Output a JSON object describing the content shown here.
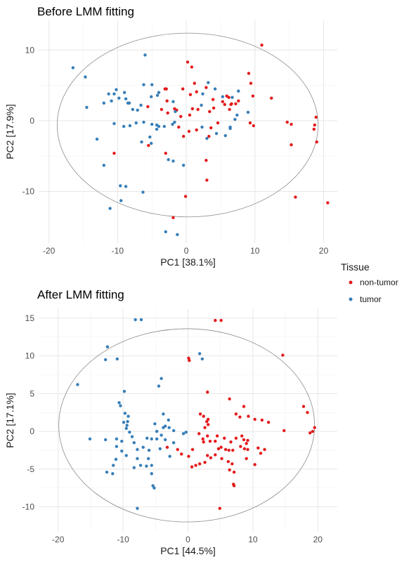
{
  "legend": {
    "title": "Tissue",
    "position": "right",
    "entries": [
      {
        "label": "non-tumor",
        "color": "#E41A1C"
      },
      {
        "label": "tumor",
        "color": "#377EB8"
      }
    ]
  },
  "chart_data": [
    {
      "type": "scatter",
      "title": "Before LMM fitting",
      "xlabel": "PC1 [38.1%]",
      "ylabel": "PC2 [17.9%]",
      "xlim": [
        -21.5,
        22
      ],
      "ylim": [
        -17.3,
        14.2
      ],
      "xticks": [
        -20,
        -10,
        0,
        10,
        20
      ],
      "yticks": [
        -10,
        0,
        10
      ],
      "grid": true,
      "ellipse": {
        "center": [
          0.2,
          -0.6
        ],
        "radius_x": 19.0,
        "radius_y": 13.0
      },
      "series": [
        {
          "name": "non-tumor",
          "color": "#E41A1C",
          "points": [
            [
              11.0,
              10.7
            ],
            [
              0.2,
              8.3
            ],
            [
              0.8,
              7.6
            ],
            [
              1.2,
              5.3
            ],
            [
              -0.5,
              4.5
            ],
            [
              0.6,
              3.7
            ],
            [
              2.9,
              4.7
            ],
            [
              1.5,
              4.1
            ],
            [
              -3.1,
              4.5
            ],
            [
              -2.9,
              4.5
            ],
            [
              -2.8,
              2.8
            ],
            [
              3.9,
              3.0
            ],
            [
              -2.7,
              1.1
            ],
            [
              -1.4,
              1.5
            ],
            [
              0.9,
              1.7
            ],
            [
              1.7,
              1.6
            ],
            [
              3.4,
              1.3
            ],
            [
              -5.6,
              2.0
            ],
            [
              -3.6,
              1.6
            ],
            [
              -1.7,
              1.7
            ],
            [
              -0.8,
              0.6
            ],
            [
              0.5,
              0.8
            ],
            [
              0.4,
              -1.5
            ],
            [
              3.6,
              -1.0
            ],
            [
              4.6,
              -0.3
            ],
            [
              -0.4,
              -2.2
            ],
            [
              1.5,
              -1.3
            ],
            [
              3.3,
              -2.2
            ],
            [
              4.0,
              1.8
            ],
            [
              5.9,
              3.5
            ],
            [
              6.2,
              3.3
            ],
            [
              6.5,
              2.3
            ],
            [
              6.3,
              1.6
            ],
            [
              6.6,
              2.4
            ],
            [
              7.2,
              2.4
            ],
            [
              7.6,
              2.8
            ],
            [
              5.3,
              2.7
            ],
            [
              5.6,
              2.3
            ],
            [
              9.1,
              6.7
            ],
            [
              9.4,
              5.3
            ],
            [
              9.7,
              3.5
            ],
            [
              9.3,
              -0.3
            ],
            [
              9.8,
              -0.7
            ],
            [
              12.4,
              3.2
            ],
            [
              14.7,
              -0.2
            ],
            [
              15.3,
              -0.5
            ],
            [
              15.3,
              -3.4
            ],
            [
              18.9,
              0.5
            ],
            [
              18.7,
              -0.6
            ],
            [
              18.6,
              -1.2
            ],
            [
              19.0,
              -3.0
            ],
            [
              15.9,
              -10.8
            ],
            [
              20.6,
              -11.6
            ],
            [
              -10.5,
              -4.6
            ],
            [
              -5.5,
              -3.5
            ],
            [
              -3.0,
              -4.6
            ],
            [
              2.9,
              -5.6
            ],
            [
              3.0,
              -8.4
            ],
            [
              -0.1,
              -10.7
            ],
            [
              -1.9,
              -13.7
            ],
            [
              -1.1,
              -0.9
            ]
          ]
        },
        {
          "name": "tumor",
          "color": "#377EB8",
          "points": [
            [
              -16.5,
              7.5
            ],
            [
              -14.7,
              6.2
            ],
            [
              -14.5,
              1.9
            ],
            [
              -11.3,
              3.8
            ],
            [
              -10.5,
              3.8
            ],
            [
              -10.2,
              4.4
            ],
            [
              -9.0,
              4.0
            ],
            [
              -8.8,
              3.1
            ],
            [
              -9.8,
              3.2
            ],
            [
              -8.3,
              2.5
            ],
            [
              -7.8,
              1.6
            ],
            [
              -7.1,
              1.5
            ],
            [
              -6.6,
              2.2
            ],
            [
              -6.2,
              5.1
            ],
            [
              -5.0,
              5.1
            ],
            [
              -5.1,
              3.4
            ],
            [
              -4.2,
              3.6
            ],
            [
              -12.0,
              2.5
            ],
            [
              -10.9,
              2.8
            ],
            [
              -8.5,
              2.5
            ],
            [
              -6.0,
              9.3
            ],
            [
              -4.0,
              4.0
            ],
            [
              -7.3,
              -0.3
            ],
            [
              -6.2,
              -0.2
            ],
            [
              -4.3,
              -0.6
            ],
            [
              -4.0,
              -0.8
            ],
            [
              -3.2,
              -0.8
            ],
            [
              -5.0,
              -0.5
            ],
            [
              -4.3,
              -1.2
            ],
            [
              -2.0,
              -0.5
            ],
            [
              -1.7,
              -0.2
            ],
            [
              -1.9,
              2.7
            ],
            [
              -1.6,
              1.3
            ],
            [
              2.4,
              3.8
            ],
            [
              2.2,
              2.2
            ],
            [
              3.2,
              5.4
            ],
            [
              6.7,
              3.3
            ],
            [
              5.3,
              3.4
            ],
            [
              4.2,
              4.5
            ],
            [
              7.6,
              4.2
            ],
            [
              7.4,
              0.8
            ],
            [
              6.4,
              -1.1
            ],
            [
              7.1,
              0.2
            ],
            [
              9.0,
              1.2
            ],
            [
              6.4,
              -0.9
            ],
            [
              2.3,
              -0.9
            ],
            [
              3.0,
              -2.5
            ],
            [
              4.4,
              -1.8
            ],
            [
              5.7,
              -2.1
            ],
            [
              -10.5,
              -0.4
            ],
            [
              -8.2,
              -0.7
            ],
            [
              -13.0,
              -2.6
            ],
            [
              -9.1,
              -0.8
            ],
            [
              -6.5,
              -3.0
            ],
            [
              -5.1,
              -3.2
            ],
            [
              -5.3,
              -2.3
            ],
            [
              -2.6,
              -5.5
            ],
            [
              -1.9,
              -5.7
            ],
            [
              -0.4,
              -6.3
            ],
            [
              -12.0,
              -6.3
            ],
            [
              -9.6,
              -9.2
            ],
            [
              -8.8,
              -9.3
            ],
            [
              -6.3,
              -10.1
            ],
            [
              -9.5,
              -11.3
            ],
            [
              -11.1,
              -12.4
            ],
            [
              -3.0,
              -15.7
            ],
            [
              -1.3,
              -16.1
            ]
          ]
        }
      ]
    },
    {
      "type": "scatter",
      "title": "After LMM fitting",
      "xlabel": "PC1 [44.5%]",
      "ylabel": "PC2 [17.1%]",
      "xlim": [
        -23,
        23
      ],
      "ylim": [
        -13.3,
        16.2
      ],
      "xticks": [
        -20,
        -10,
        0,
        10,
        20
      ],
      "yticks": [
        -10,
        -5,
        0,
        5,
        10,
        15
      ],
      "grid": true,
      "ellipse": {
        "center": [
          -0.2,
          0.8
        ],
        "radius_x": 19.7,
        "radius_y": 12.8
      },
      "series": [
        {
          "name": "non-tumor",
          "color": "#E41A1C",
          "points": [
            [
              4.2,
              14.7
            ],
            [
              5.1,
              14.7
            ],
            [
              14.6,
              10.1
            ],
            [
              0.2,
              9.4
            ],
            [
              0.1,
              9.7
            ],
            [
              3.0,
              5.2
            ],
            [
              6.4,
              4.3
            ],
            [
              8.6,
              3.3
            ],
            [
              7.4,
              2.3
            ],
            [
              9.3,
              2.0
            ],
            [
              8.0,
              1.9
            ],
            [
              10.3,
              1.6
            ],
            [
              11.4,
              1.5
            ],
            [
              12.4,
              1.2
            ],
            [
              14.8,
              0.1
            ],
            [
              17.8,
              3.3
            ],
            [
              18.4,
              2.5
            ],
            [
              19.5,
              0.5
            ],
            [
              19.2,
              0.0
            ],
            [
              18.8,
              -0.2
            ],
            [
              1.9,
              2.3
            ],
            [
              2.4,
              2.0
            ],
            [
              3.1,
              1.6
            ],
            [
              2.9,
              1.3
            ],
            [
              3.1,
              0.9
            ],
            [
              2.6,
              0.5
            ],
            [
              1.7,
              -0.3
            ],
            [
              2.3,
              -1.0
            ],
            [
              3.4,
              -1.3
            ],
            [
              3.0,
              -0.6
            ],
            [
              2.4,
              -1.4
            ],
            [
              4.5,
              -0.6
            ],
            [
              5.6,
              -0.9
            ],
            [
              6.6,
              -1.4
            ],
            [
              7.4,
              -0.9
            ],
            [
              8.3,
              -0.6
            ],
            [
              4.2,
              -1.3
            ],
            [
              5.1,
              -2.1
            ],
            [
              4.7,
              -2.3
            ],
            [
              5.8,
              -2.4
            ],
            [
              6.3,
              -2.5
            ],
            [
              6.9,
              -2.5
            ],
            [
              8.1,
              -2.0
            ],
            [
              8.7,
              -2.3
            ],
            [
              9.2,
              -2.4
            ],
            [
              8.6,
              -1.1
            ],
            [
              9.2,
              -1.2
            ],
            [
              9.0,
              -1.6
            ],
            [
              10.8,
              -2.2
            ],
            [
              11.2,
              -2.9
            ],
            [
              11.8,
              -2.4
            ],
            [
              -3.2,
              -2.1
            ],
            [
              -1.6,
              -2.4
            ],
            [
              0.7,
              -2.4
            ],
            [
              -1.0,
              -3.0
            ],
            [
              0.1,
              -3.3
            ],
            [
              3.0,
              -3.2
            ],
            [
              1.2,
              -4.5
            ],
            [
              0.6,
              -4.7
            ],
            [
              1.8,
              -4.3
            ],
            [
              2.6,
              -4.1
            ],
            [
              3.5,
              -3.5
            ],
            [
              4.2,
              -3.1
            ],
            [
              5.2,
              -3.6
            ],
            [
              6.2,
              -4.0
            ],
            [
              6.8,
              -4.3
            ],
            [
              6.4,
              -5.1
            ],
            [
              7.1,
              -5.4
            ],
            [
              9.0,
              -3.6
            ],
            [
              10.3,
              -4.4
            ],
            [
              7.0,
              -7.0
            ],
            [
              7.1,
              -7.2
            ],
            [
              4.9,
              -10.2
            ]
          ]
        },
        {
          "name": "tumor",
          "color": "#377EB8",
          "points": [
            [
              -8.1,
              14.8
            ],
            [
              -7.2,
              14.8
            ],
            [
              -12.4,
              11.2
            ],
            [
              1.8,
              10.3
            ],
            [
              2.2,
              9.6
            ],
            [
              -12.7,
              9.5
            ],
            [
              -10.9,
              9.6
            ],
            [
              -4.1,
              7.0
            ],
            [
              -4.5,
              6.0
            ],
            [
              -9.8,
              5.3
            ],
            [
              -17.0,
              6.2
            ],
            [
              -10.6,
              3.8
            ],
            [
              -10.4,
              3.4
            ],
            [
              -9.7,
              2.4
            ],
            [
              -9.2,
              2.0
            ],
            [
              -9.3,
              1.3
            ],
            [
              -9.9,
              1.2
            ],
            [
              -9.4,
              0.8
            ],
            [
              -9.5,
              0.4
            ],
            [
              -9.0,
              -0.1
            ],
            [
              -8.6,
              -0.7
            ],
            [
              -3.8,
              2.3
            ],
            [
              -3.0,
              1.5
            ],
            [
              -5.1,
              1.0
            ],
            [
              -3.5,
              0.7
            ],
            [
              -2.9,
              0.5
            ],
            [
              -3.8,
              0.5
            ],
            [
              -2.2,
              0.1
            ],
            [
              -0.7,
              -0.3
            ],
            [
              -0.3,
              -0.1
            ],
            [
              -4.8,
              0.0
            ],
            [
              -4.1,
              -0.5
            ],
            [
              -3.5,
              -1.1
            ],
            [
              -4.8,
              -1.0
            ],
            [
              -4.3,
              -2.3
            ],
            [
              -2.2,
              -1.5
            ],
            [
              -2.8,
              -3.3
            ],
            [
              -11.0,
              -1.0
            ],
            [
              -10.2,
              -1.3
            ],
            [
              -8.3,
              -1.5
            ],
            [
              -6.3,
              -0.9
            ],
            [
              -5.6,
              -1.0
            ],
            [
              -7.8,
              -2.4
            ],
            [
              -6.9,
              -2.1
            ],
            [
              -6.0,
              -2.5
            ],
            [
              -11.0,
              -2.0
            ],
            [
              -10.2,
              -2.6
            ],
            [
              -9.5,
              -3.2
            ],
            [
              -7.8,
              -3.6
            ],
            [
              -7.3,
              -4.5
            ],
            [
              -8.3,
              -4.8
            ],
            [
              -6.1,
              -3.6
            ],
            [
              -6.4,
              -4.6
            ],
            [
              -5.6,
              -4.5
            ],
            [
              -15.1,
              -1.0
            ],
            [
              -12.7,
              -1.1
            ],
            [
              -11.1,
              -3.7
            ],
            [
              -11.5,
              -4.5
            ],
            [
              -12.5,
              -5.4
            ],
            [
              -11.6,
              -5.6
            ],
            [
              -5.4,
              -7.2
            ],
            [
              -5.2,
              -7.5
            ],
            [
              -7.8,
              -10.2
            ],
            [
              -5.6,
              -5.6
            ]
          ]
        }
      ]
    }
  ]
}
